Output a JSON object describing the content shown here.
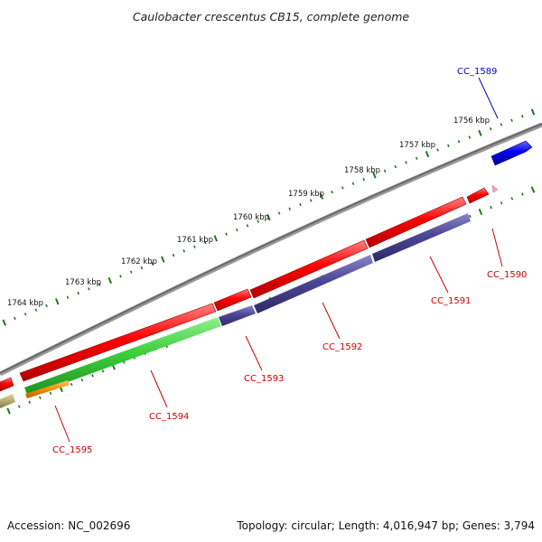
{
  "title": "Caulobacter crescentus CB15, complete genome",
  "footer": {
    "accession": "Accession: NC_002696",
    "summary": "Topology: circular; Length: 4,016,947 bp; Genes: 3,794"
  },
  "colors": {
    "backbone": "#808080",
    "tick": "#1f7a1f",
    "forward_gene": "#ff0000",
    "reverse_gene": "#d40000",
    "plus_highlight": "#0000dd",
    "cds_purple": "#4b4694",
    "cds_green": "#3ccf3c",
    "cds_orange": "#f0900a",
    "cds_khaki": "#b4ad6e",
    "small_pink": "#f5a0c8"
  },
  "ruler": {
    "unit": "kbp",
    "labels": [
      "1756 kbp",
      "1757 kbp",
      "1758 kbp",
      "1759 kbp",
      "1760 kbp",
      "1761 kbp",
      "1762 kbp",
      "1763 kbp",
      "1764 kbp"
    ]
  },
  "genes": [
    {
      "id": "CC_1589",
      "strand": "+",
      "color": "#0000dd"
    },
    {
      "id": "CC_1590",
      "strand": "-",
      "color": "#dd0000"
    },
    {
      "id": "CC_1591",
      "strand": "-",
      "color": "#dd0000"
    },
    {
      "id": "CC_1592",
      "strand": "-",
      "color": "#dd0000"
    },
    {
      "id": "CC_1593",
      "strand": "-",
      "color": "#dd0000"
    },
    {
      "id": "CC_1594",
      "strand": "-",
      "color": "#dd0000"
    },
    {
      "id": "CC_1595",
      "strand": "-",
      "color": "#dd0000"
    }
  ]
}
